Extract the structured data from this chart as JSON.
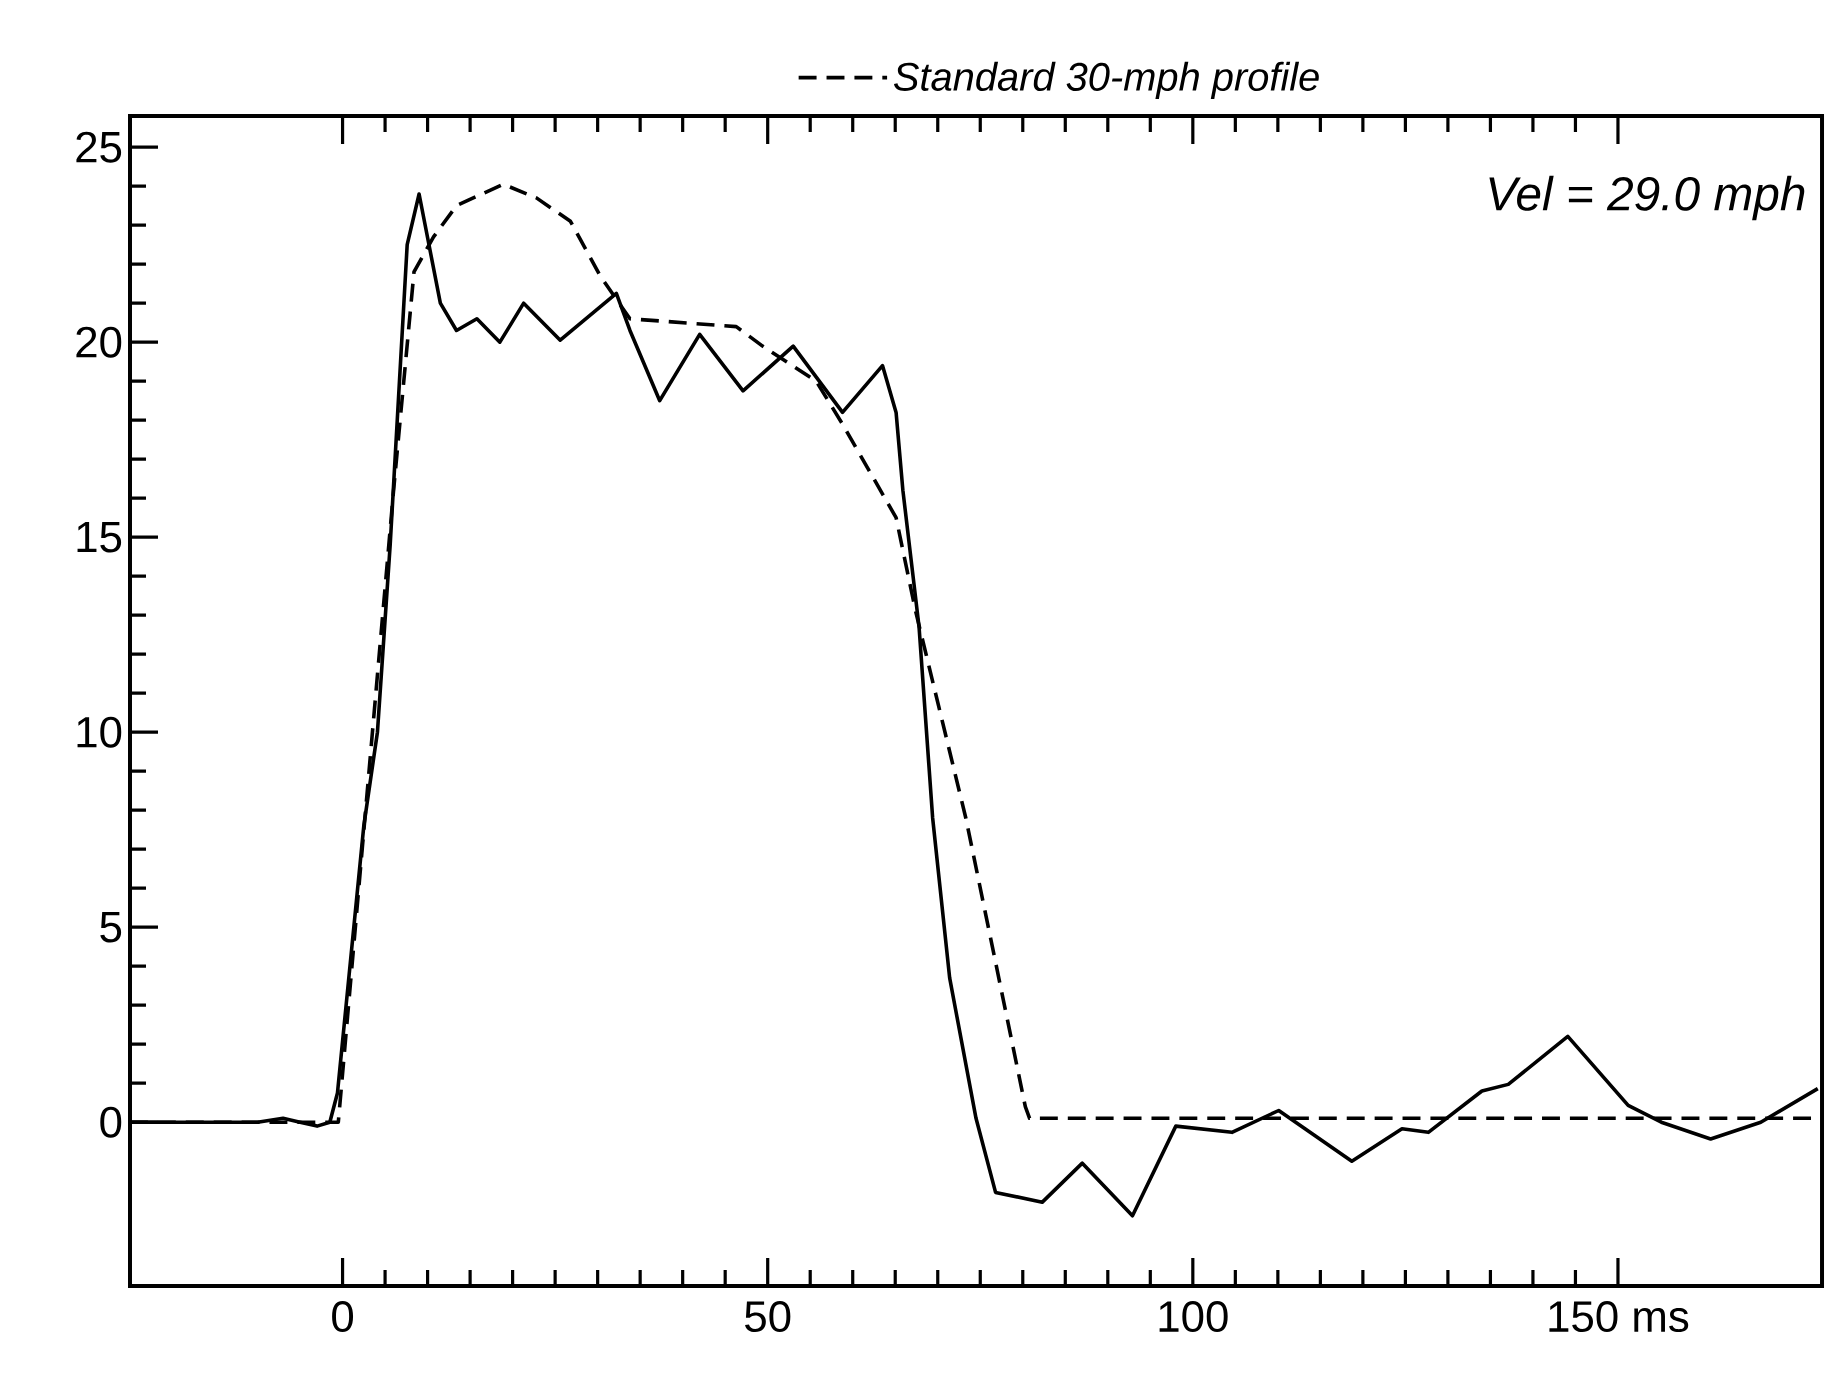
{
  "chart_data": {
    "type": "line",
    "xlim": [
      -25,
      174
    ],
    "ylim": [
      -4.2,
      25.8
    ],
    "xticks": [
      0,
      50,
      100,
      {
        "value": 150,
        "label": "150 ms"
      }
    ],
    "yticks": [
      0,
      5,
      10,
      15,
      20,
      25
    ],
    "legend": "top",
    "annotations": [
      "Vel = 29.0 mph"
    ],
    "series": [
      {
        "color": "#000000",
        "line_style": "solid",
        "x": [
          -25,
          -10,
          -7,
          -5,
          -3,
          -1.5,
          -0.6,
          2.5,
          4.1,
          5.6,
          7.6,
          9.0,
          11.5,
          13.4,
          15.8,
          18.5,
          21.3,
          25.6,
          32.2,
          33.8,
          37.3,
          42.0,
          47.1,
          53.0,
          58.8,
          63.5,
          65.1,
          65.9,
          67.8,
          69.4,
          71.4,
          74.5,
          76.8,
          82.3,
          87.0,
          92.9,
          98.0,
          104.6,
          110.1,
          118.7,
          124.6,
          127.7,
          134.0,
          137.1,
          144.1,
          151.2,
          155.1,
          160.9,
          166.8,
          173.5
        ],
        "values": [
          0,
          0,
          0.1,
          0,
          -0.1,
          0,
          0.75,
          7.6,
          10,
          14.8,
          22.5,
          23.8,
          21.0,
          20.3,
          20.6,
          20.0,
          21.0,
          20.05,
          21.25,
          20.3,
          18.5,
          20.2,
          18.75,
          19.9,
          18.2,
          19.4,
          18.2,
          16.2,
          12.7,
          7.8,
          3.7,
          0.1,
          -1.8,
          -2.05,
          -1.05,
          -2.4,
          -0.1,
          -0.26,
          0.3,
          -1.0,
          -0.17,
          -0.26,
          0.8,
          0.97,
          2.2,
          0.43,
          0,
          -0.43,
          0,
          0.86
        ]
      },
      {
        "name": "Standard 30-mph profile",
        "color": "#000000",
        "line_style": "dashed",
        "x": [
          -25,
          -0.5,
          6.0,
          8.4,
          10.7,
          13.4,
          18.9,
          22.8,
          26.8,
          30.3,
          33.8,
          46.3,
          49.4,
          55.7,
          58.8,
          65.1,
          67.4,
          73.3,
          80.3,
          80.8,
          174
        ],
        "values": [
          0,
          0,
          16.2,
          21.8,
          22.7,
          23.5,
          24.05,
          23.7,
          23.1,
          21.7,
          20.6,
          20.4,
          19.9,
          19.0,
          17.9,
          15.5,
          13.1,
          7.8,
          0.4,
          0.1,
          0.1
        ]
      }
    ]
  }
}
